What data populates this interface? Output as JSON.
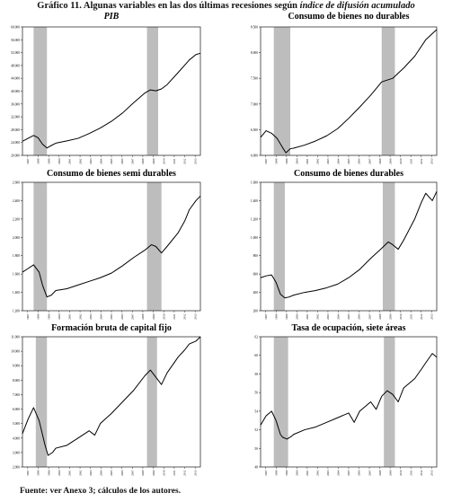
{
  "figure": {
    "title_bold": "Gráfico 11. Algunas variables en las dos últimas recesiones según",
    "title_italic": "índice de difusión acumulado",
    "source": "Fuente: ver Anexo 3; cálculos de los autores."
  },
  "chart_data": [
    {
      "type": "line",
      "title": "PIB",
      "title_style": "italic",
      "ylim": [
        20000,
        60000
      ],
      "yticks": [
        "20.000",
        "24.000",
        "28.000",
        "32.000",
        "36.000",
        "40.000",
        "44.000",
        "48.000",
        "52.000",
        "56.000",
        "60.000"
      ],
      "xlim": [
        1997,
        2013
      ],
      "xticks": [
        "1997",
        "1998",
        "1999",
        "2000",
        "2001",
        "2002",
        "2003",
        "2004",
        "2005",
        "2006",
        "2007",
        "2008",
        "2009",
        "2010",
        "2011",
        "2012",
        "2013"
      ],
      "recessions": [
        [
          1998.0,
          1999.2
        ],
        [
          2008.2,
          2009.2
        ]
      ],
      "x": [
        1997.0,
        1997.5,
        1998.0,
        1998.4,
        1998.8,
        1999.2,
        1999.5,
        2000.0,
        2001.0,
        2002.0,
        2003.0,
        2004.0,
        2005.0,
        2006.0,
        2007.0,
        2008.0,
        2008.5,
        2009.0,
        2009.5,
        2010.0,
        2011.0,
        2012.0,
        2012.6,
        2013.0
      ],
      "y": [
        24400,
        25300,
        26200,
        25500,
        23500,
        22300,
        22900,
        23800,
        24500,
        25300,
        26800,
        28500,
        30600,
        33200,
        36400,
        39400,
        40400,
        40100,
        40700,
        42000,
        45800,
        49700,
        51400,
        51800
      ]
    },
    {
      "type": "line",
      "title": "Consumo de bienes no durables",
      "ylim": [
        6000,
        8500
      ],
      "yticks": [
        "6.000",
        "6.500",
        "7.000",
        "7.500",
        "8.000",
        "8.500"
      ],
      "xlim": [
        1997,
        2013
      ],
      "xticks": [
        "1997",
        "1998",
        "1999",
        "2000",
        "2001",
        "2002",
        "2003",
        "2004",
        "2005",
        "2006",
        "2007",
        "2008",
        "2009",
        "2010",
        "2011",
        "2012",
        "2013"
      ],
      "recessions": [
        [
          1998.2,
          1999.7
        ],
        [
          2008.0,
          2009.2
        ]
      ],
      "x": [
        1997.0,
        1997.5,
        1998.0,
        1998.5,
        1999.0,
        1999.3,
        1999.7,
        2000.0,
        2001.0,
        2002.0,
        2003.0,
        2004.0,
        2005.0,
        2006.0,
        2007.0,
        2008.0,
        2009.0,
        2010.0,
        2011.0,
        2012.0,
        2013.0
      ],
      "y": [
        6350,
        6480,
        6430,
        6330,
        6150,
        6050,
        6130,
        6140,
        6200,
        6280,
        6380,
        6520,
        6720,
        6940,
        7170,
        7430,
        7500,
        7700,
        7930,
        8250,
        8450
      ]
    },
    {
      "type": "line",
      "title": "Consumo de bienes semi durables",
      "ylim": [
        1200,
        2600
      ],
      "yticks": [
        "1.200",
        "1.400",
        "1.600",
        "1.800",
        "2.000",
        "2.200",
        "2.400",
        "2.600"
      ],
      "xlim": [
        1997,
        2013
      ],
      "xticks": [
        "1997",
        "1998",
        "1999",
        "2000",
        "2001",
        "2002",
        "2003",
        "2004",
        "2005",
        "2006",
        "2007",
        "2008",
        "2009",
        "2010",
        "2011",
        "2012",
        "2013"
      ],
      "recessions": [
        [
          1998.0,
          1999.2
        ],
        [
          2008.2,
          2009.5
        ]
      ],
      "x": [
        1997.0,
        1997.5,
        1998.0,
        1998.5,
        1998.8,
        1999.2,
        1999.6,
        2000.0,
        2001.0,
        2002.0,
        2003.0,
        2004.0,
        2005.0,
        2006.0,
        2007.0,
        2008.0,
        2008.6,
        2009.0,
        2009.5,
        2010.0,
        2011.0,
        2011.6,
        2012.0,
        2012.6,
        2013.0
      ],
      "y": [
        1620,
        1660,
        1700,
        1620,
        1480,
        1350,
        1370,
        1420,
        1440,
        1480,
        1520,
        1560,
        1610,
        1690,
        1780,
        1860,
        1920,
        1900,
        1830,
        1900,
        2050,
        2180,
        2300,
        2400,
        2450
      ]
    },
    {
      "type": "line",
      "title": "Consumo de bienes durables",
      "ylim": [
        200,
        1600
      ],
      "yticks": [
        "200",
        "400",
        "600",
        "800",
        "1.000",
        "1.200",
        "1.400",
        "1.600"
      ],
      "xlim": [
        1997,
        2013
      ],
      "xticks": [
        "1997",
        "1998",
        "1999",
        "2000",
        "2001",
        "2002",
        "2003",
        "2004",
        "2005",
        "2006",
        "2007",
        "2008",
        "2009",
        "2010",
        "2011",
        "2012",
        "2013"
      ],
      "recessions": [
        [
          1998.2,
          1999.2
        ],
        [
          2008.1,
          2009.2
        ]
      ],
      "x": [
        1997.0,
        1997.5,
        1998.0,
        1998.4,
        1998.8,
        1999.2,
        1999.6,
        2000.0,
        2001.0,
        2002.0,
        2003.0,
        2004.0,
        2005.0,
        2006.0,
        2007.0,
        2008.0,
        2008.6,
        2009.0,
        2009.5,
        2010.0,
        2011.0,
        2011.6,
        2012.0,
        2012.6,
        2013.0
      ],
      "y": [
        560,
        580,
        590,
        510,
        380,
        340,
        350,
        370,
        400,
        420,
        450,
        490,
        560,
        650,
        770,
        880,
        950,
        920,
        870,
        970,
        1200,
        1380,
        1480,
        1400,
        1500
      ]
    },
    {
      "type": "line",
      "title": "Formación bruta de capital fijo",
      "ylim": [
        2000,
        11000
      ],
      "yticks": [
        "2.000",
        "3.000",
        "4.000",
        "5.000",
        "6.000",
        "7.000",
        "8.000",
        "9.000",
        "10.000",
        "11.000"
      ],
      "xlim": [
        1997,
        2013
      ],
      "xticks": [
        "1997",
        "1998",
        "1999",
        "2000",
        "2001",
        "2002",
        "2003",
        "2004",
        "2005",
        "2006",
        "2007",
        "2008",
        "2009",
        "2010",
        "2011",
        "2012",
        "2013"
      ],
      "recessions": [
        [
          1998.2,
          1999.2
        ],
        [
          2008.2,
          2009.1
        ]
      ],
      "x": [
        1997.0,
        1997.5,
        1998.0,
        1998.5,
        1999.0,
        1999.3,
        1999.7,
        2000.0,
        2001.0,
        2002.0,
        2003.0,
        2003.5,
        2004.0,
        2005.0,
        2006.0,
        2007.0,
        2008.0,
        2008.5,
        2009.0,
        2009.5,
        2010.0,
        2011.0,
        2011.6,
        2012.0,
        2012.6,
        2013.0
      ],
      "y": [
        4300,
        5300,
        6100,
        5200,
        3600,
        2800,
        3000,
        3300,
        3500,
        4000,
        4500,
        4200,
        5000,
        5700,
        6500,
        7300,
        8300,
        8700,
        8200,
        7700,
        8500,
        9600,
        10100,
        10500,
        10700,
        11000
      ]
    },
    {
      "type": "line",
      "title": "Tasa de ocupación, siete áreas",
      "ylim": [
        48,
        62
      ],
      "yticks": [
        "48",
        "50",
        "52",
        "54",
        "56",
        "58",
        "60",
        "62"
      ],
      "xlim": [
        1997,
        2013
      ],
      "xticks": [
        "1997",
        "1998",
        "1999",
        "2000",
        "2001",
        "2002",
        "2003",
        "2004",
        "2005",
        "2006",
        "2007",
        "2008",
        "2009",
        "2010",
        "2011",
        "2012",
        "2013"
      ],
      "recessions": [
        [
          1998.2,
          1999.5
        ],
        [
          2008.2,
          2009.2
        ]
      ],
      "x": [
        1997.0,
        1997.5,
        1998.0,
        1998.4,
        1998.8,
        1999.0,
        1999.4,
        1999.8,
        2000.0,
        2001.0,
        2002.0,
        2003.0,
        2004.0,
        2005.0,
        2005.5,
        2006.0,
        2007.0,
        2007.5,
        2008.0,
        2008.5,
        2009.0,
        2009.5,
        2010.0,
        2011.0,
        2011.6,
        2012.0,
        2012.6,
        2013.0
      ],
      "y": [
        52.5,
        53.5,
        54.0,
        53.0,
        51.5,
        51.2,
        51.0,
        51.3,
        51.5,
        52.0,
        52.3,
        52.8,
        53.3,
        53.8,
        52.8,
        54.0,
        55.0,
        54.2,
        55.6,
        56.2,
        55.8,
        55.0,
        56.5,
        57.5,
        58.5,
        59.2,
        60.2,
        59.8
      ]
    }
  ]
}
